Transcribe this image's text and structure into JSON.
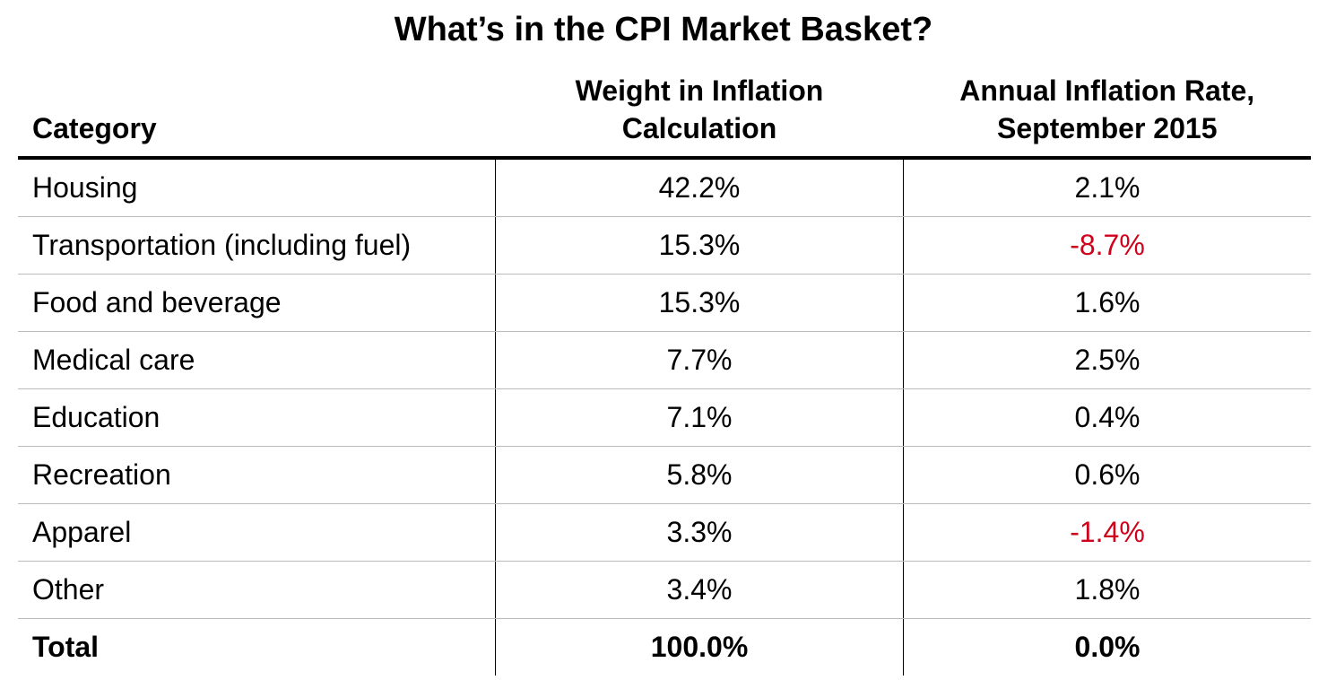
{
  "title": "What’s in the CPI Market Basket?",
  "table": {
    "header": [
      "Category",
      "Weight in Inflation Calculation",
      "Annual Inflation Rate, September 2015"
    ],
    "rows": [
      [
        "Housing",
        "42.2%",
        "2.1%"
      ],
      [
        "Transportation (including fuel)",
        "15.3%",
        "-8.7%"
      ],
      [
        "Food and beverage",
        "15.3%",
        "1.6%"
      ],
      [
        "Medical care",
        "7.7%",
        "2.5%"
      ],
      [
        "Education",
        "7.1%",
        "0.4%"
      ],
      [
        "Recreation",
        "5.8%",
        "0.6%"
      ],
      [
        "Apparel",
        "3.3%",
        "-1.4%"
      ],
      [
        "Other",
        "3.4%",
        "1.8%"
      ]
    ],
    "total": [
      "Total",
      "100.0%",
      "0.0%"
    ]
  }
}
